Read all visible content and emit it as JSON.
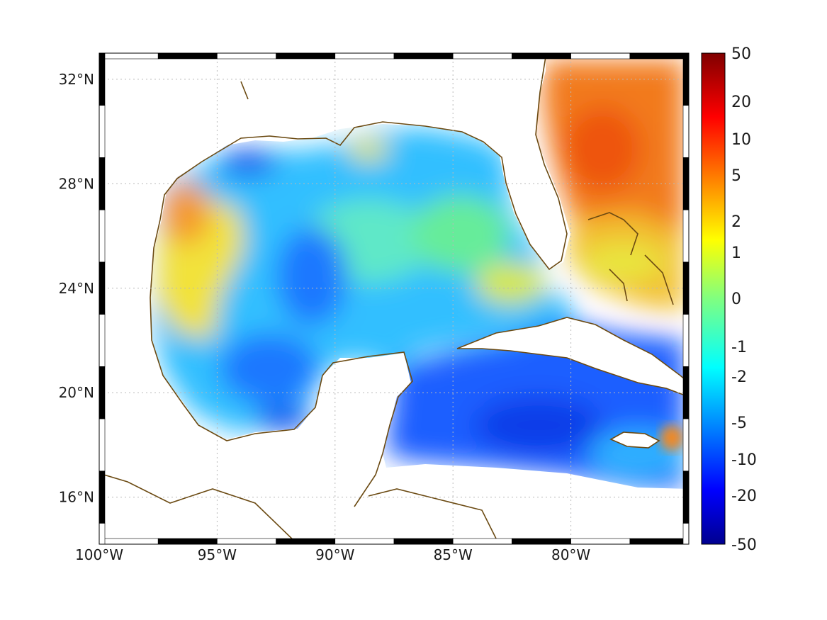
{
  "map": {
    "lon_range": [
      -100,
      -75
    ],
    "lat_range": [
      14.2,
      33
    ],
    "lon_ticks": [
      {
        "value": -100,
        "label": "100°W"
      },
      {
        "value": -95,
        "label": "95°W"
      },
      {
        "value": -90,
        "label": "90°W"
      },
      {
        "value": -85,
        "label": "85°W"
      },
      {
        "value": -80,
        "label": "80°W"
      }
    ],
    "lat_ticks": [
      {
        "value": 32,
        "label": "32°N"
      },
      {
        "value": 28,
        "label": "28°N"
      },
      {
        "value": 24,
        "label": "24°N"
      },
      {
        "value": 20,
        "label": "20°N"
      },
      {
        "value": 16,
        "label": "16°N"
      }
    ],
    "grid": true,
    "frame": "alternating-black-white",
    "coastline_color": "#6b4a12",
    "land_color": "#ffffff"
  },
  "colorbar": {
    "colormap": "jet",
    "position": "right",
    "ticks": [
      "50",
      "20",
      "10",
      "5",
      "2",
      "1",
      "0",
      "-1",
      "-2",
      "-5",
      "-10",
      "-20",
      "-50"
    ]
  }
}
